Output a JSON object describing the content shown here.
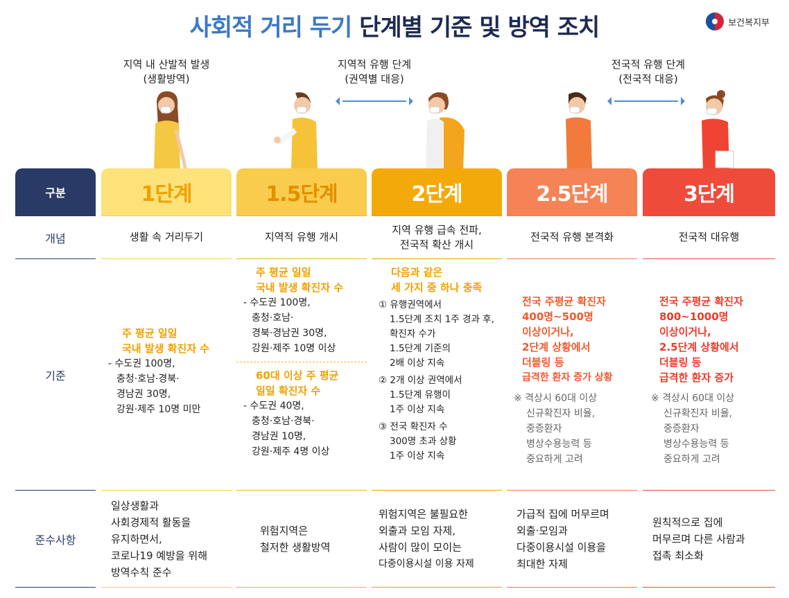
{
  "title": {
    "part1": "사회적 거리 두기",
    "part2": "단계별 기준 및 방역 조치"
  },
  "logo": {
    "icon": "taegeuk-icon",
    "text": "보건복지부"
  },
  "headers": {
    "h1": {
      "line1": "지역 내 산발적 발생",
      "line2": "(생활방역)"
    },
    "h2": {
      "line1": "지역적 유행 단계",
      "line2": "(권역별 대응)"
    },
    "h3": {
      "line1": "전국적 유행 단계",
      "line2": "(전국적 대응)"
    }
  },
  "rows": {
    "head": "구분",
    "concept": "개념",
    "criteria": "기준",
    "rules": "준수사항"
  },
  "colors": {
    "c1": "#f6d24a",
    "c2": "#f3b42c",
    "c3": "#f0a100",
    "c4": "#f47a4b",
    "c5": "#ef4b3b",
    "navy": "#2a3a66"
  },
  "stages": [
    {
      "name": "1단계",
      "concept": "생활 속 거리두기",
      "crit": {
        "hl1": "주 평균 일일",
        "hl2": "국내 발생 확진자 수",
        "t1": "- 수도권 100명,",
        "t2": "충청·호남·경북·",
        "t3": "경남권 30명,",
        "t4": "강원·제주 10명 미만"
      },
      "rules": {
        "l1": "일상생활과",
        "l2": "사회경제적 활동을",
        "l3": "유지하면서,",
        "l4": "코로나19 예방을 위해",
        "l5": "방역수칙 준수"
      }
    },
    {
      "name": "1.5단계",
      "concept": "지역적 유행 개시",
      "crit": {
        "a_hl1": "주 평균 일일",
        "a_hl2": "국내 발생 확진자 수",
        "a_t1": "- 수도권 100명,",
        "a_t2": "충청·호남·",
        "a_t3": "경북·경남권 30명,",
        "a_t4": "강원·제주 10명 이상",
        "b_hl1": "60대 이상 주 평균",
        "b_hl2": "일일 확진자 수",
        "b_t1": "- 수도권 40명,",
        "b_t2": "충청·호남·경북·",
        "b_t3": "경남권 10명,",
        "b_t4": "강원·제주 4명 이상"
      },
      "rules": {
        "l1": "위험지역은",
        "l2": "철저한 생활방역"
      }
    },
    {
      "name": "2단계",
      "concept": {
        "l1": "지역 유행 급속 전파,",
        "l2": "전국적 확산 개시"
      },
      "crit": {
        "hl1": "다음과 같은",
        "hl2": "세 가지 중 하나 충족",
        "i1_1": "① 유행권역에서",
        "i1_2": "1.5단계 조치 1주 경과 후,",
        "i1_3": "확진자 수가",
        "i1_4": "1.5단계 기준의",
        "i1_5": "2배 이상 지속",
        "i2_1": "② 2개 이상 권역에서",
        "i2_2": "1.5단계 유행이",
        "i2_3": "1주 이상 지속",
        "i3_1": "③ 전국 확진자 수",
        "i3_2": "300명 초과 상황",
        "i3_3": "1주 이상 지속"
      },
      "rules": {
        "l1": "위험지역은 불필요한",
        "l2": "외출과 모임 자제,",
        "l3": "사람이 많이 모이는",
        "l4": "다중이용시설 이용 자제"
      }
    },
    {
      "name": "2.5단계",
      "concept": "전국적 유행 본격화",
      "crit": {
        "hl1": "전국 주평균 확진자",
        "hl2": "400명~500명",
        "hl3": "이상이거나,",
        "hl4": "2단계 상황에서",
        "hl5": "더블링 등",
        "hl6": "급격한 환자 증가 상황",
        "n1": "※ 격상시 60대 이상",
        "n2": "신규확진자 비율,",
        "n3": "중증환자",
        "n4": "병상수용능력 등",
        "n5": "중요하게 고려"
      },
      "rules": {
        "l1": "가급적 집에 머무르며",
        "l2": "외출·모임과",
        "l3": "다중이용시설 이용을",
        "l4": "최대한 자제"
      }
    },
    {
      "name": "3단계",
      "concept": "전국적 대유행",
      "crit": {
        "hl1": "전국 주평균 확진자",
        "hl2": "800~1000명",
        "hl3": "이상이거나,",
        "hl4": "2.5단계 상황에서",
        "hl5": "더블링 등",
        "hl6": "급격한 환자 증가",
        "n1": "※ 격상시 60대 이상",
        "n2": "신규확진자 비율,",
        "n3": "중증환자",
        "n4": "병상수용능력 등",
        "n5": "중요하게 고려"
      },
      "rules": {
        "l1": "원칙적으로 집에",
        "l2": "머무르며 다른 사람과",
        "l3": "접촉 최소화"
      }
    }
  ]
}
